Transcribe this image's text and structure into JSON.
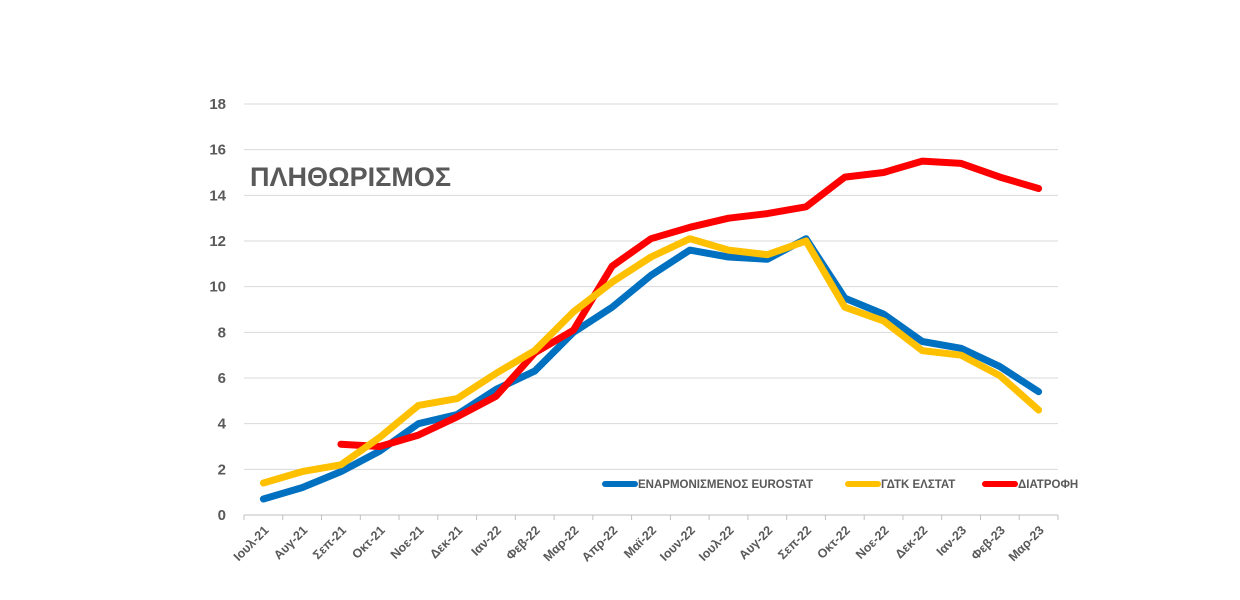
{
  "chart_data": {
    "type": "line",
    "title": "ΠΛΗΘΩΡΙΣΜΟΣ",
    "xlabel": "",
    "ylabel": "",
    "ylim": [
      0,
      18
    ],
    "yticks": [
      "0",
      "2",
      "4",
      "6",
      "8",
      "10",
      "12",
      "14",
      "16",
      "18"
    ],
    "grid": "horizontal",
    "legend_position": "bottom-right",
    "categories": [
      "Ιουλ-21",
      "Αυγ-21",
      "Σεπ-21",
      "Οκτ-21",
      "Νοε-21",
      "Δεκ-21",
      "Ιαν-22",
      "Φεβ-22",
      "Μαρ-22",
      "Απρ-22",
      "Μαϊ-22",
      "Ιουν-22",
      "Ιουλ-22",
      "Αυγ-22",
      "Σεπ-22",
      "Οκτ-22",
      "Νοε-22",
      "Δεκ-22",
      "Ιαν-23",
      "Φεβ-23",
      "Μαρ-23"
    ],
    "series": [
      {
        "name": "ΕΝΑΡΜΟΝΙΣΜΕΝΟΣ EUROSTAT",
        "color": "#0070C0",
        "values": [
          0.7,
          1.2,
          1.9,
          2.8,
          4.0,
          4.4,
          5.5,
          6.3,
          8.0,
          9.1,
          10.5,
          11.6,
          11.3,
          11.2,
          12.1,
          9.5,
          8.8,
          7.6,
          7.3,
          6.5,
          5.4
        ]
      },
      {
        "name": "ΓΔΤΚ ΕΛΣΤΑΤ",
        "color": "#FFC000",
        "values": [
          1.4,
          1.9,
          2.2,
          3.4,
          4.8,
          5.1,
          6.2,
          7.2,
          8.9,
          10.2,
          11.3,
          12.1,
          11.6,
          11.4,
          12.0,
          9.1,
          8.5,
          7.2,
          7.0,
          6.1,
          4.6
        ]
      },
      {
        "name": "ΔΙΑΤΡΟΦΗ",
        "color": "#FF0000",
        "values": [
          null,
          null,
          3.1,
          3.0,
          3.5,
          4.3,
          5.2,
          7.1,
          8.1,
          10.9,
          12.1,
          12.6,
          13.0,
          13.2,
          13.5,
          14.8,
          15.0,
          15.5,
          15.4,
          14.8,
          14.3
        ]
      }
    ]
  }
}
